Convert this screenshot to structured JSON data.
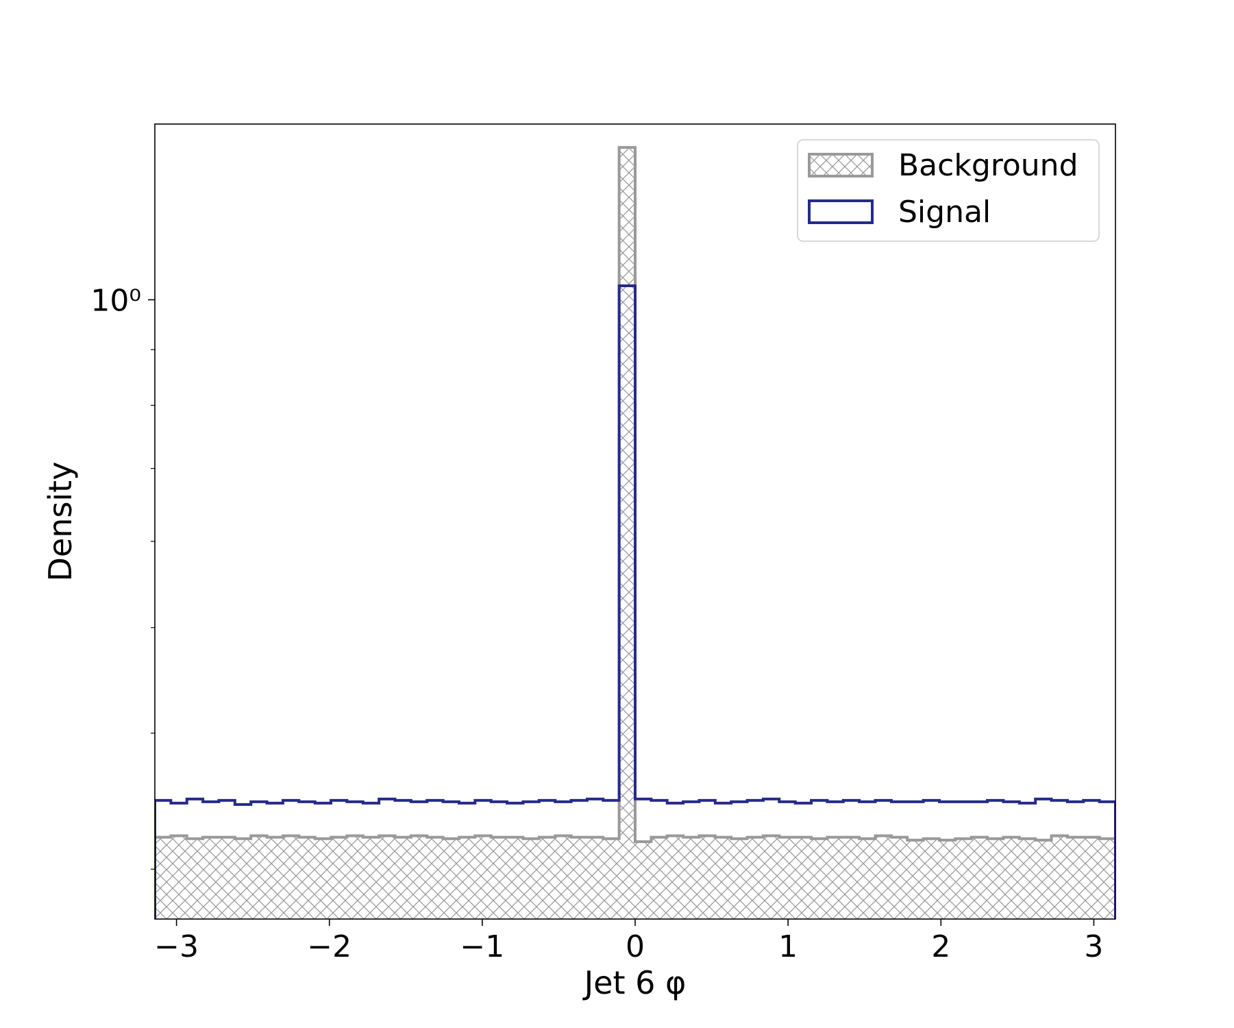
{
  "chart_data": {
    "type": "histogram",
    "xlabel": "Jet 6 φ",
    "ylabel": "Density",
    "xlim": [
      -3.1416,
      3.1416
    ],
    "ylim": [
      0.27,
      1.45
    ],
    "yscale": "log",
    "xticks": [
      -3,
      -2,
      -1,
      0,
      1,
      2,
      3
    ],
    "xtick_labels": [
      "−3",
      "−2",
      "−1",
      "0",
      "1",
      "2",
      "3"
    ],
    "yticks_major": [
      1.0
    ],
    "ytick_labels": [
      "10⁰"
    ],
    "yticks_minor": [
      0.3,
      0.4,
      0.5,
      0.6,
      0.7,
      0.8,
      0.9
    ],
    "bins": {
      "start": -3.1416,
      "end": 3.1416,
      "count": 60
    },
    "legend": {
      "position": "upper right",
      "entries": [
        "Background",
        "Signal"
      ]
    },
    "series": [
      {
        "name": "Background",
        "style": "hatched-step",
        "color": "#999999",
        "values": [
          0.321,
          0.322,
          0.32,
          0.321,
          0.321,
          0.32,
          0.322,
          0.321,
          0.322,
          0.321,
          0.32,
          0.321,
          0.322,
          0.321,
          0.322,
          0.321,
          0.322,
          0.321,
          0.32,
          0.321,
          0.322,
          0.321,
          0.321,
          0.32,
          0.321,
          0.322,
          0.321,
          0.321,
          0.32,
          1.38,
          0.318,
          0.321,
          0.322,
          0.321,
          0.322,
          0.321,
          0.32,
          0.321,
          0.322,
          0.321,
          0.321,
          0.32,
          0.321,
          0.321,
          0.32,
          0.322,
          0.321,
          0.319,
          0.32,
          0.319,
          0.32,
          0.321,
          0.32,
          0.321,
          0.32,
          0.319,
          0.322,
          0.321,
          0.321,
          0.32
        ]
      },
      {
        "name": "Signal",
        "style": "step",
        "color": "#262a8c",
        "values": [
          0.347,
          0.345,
          0.348,
          0.346,
          0.347,
          0.344,
          0.346,
          0.345,
          0.347,
          0.346,
          0.345,
          0.347,
          0.346,
          0.345,
          0.348,
          0.347,
          0.346,
          0.347,
          0.346,
          0.345,
          0.347,
          0.346,
          0.345,
          0.346,
          0.347,
          0.346,
          0.347,
          0.348,
          0.347,
          1.03,
          0.348,
          0.347,
          0.345,
          0.346,
          0.347,
          0.345,
          0.346,
          0.347,
          0.348,
          0.346,
          0.345,
          0.347,
          0.346,
          0.347,
          0.346,
          0.347,
          0.346,
          0.346,
          0.347,
          0.346,
          0.346,
          0.346,
          0.347,
          0.346,
          0.345,
          0.348,
          0.347,
          0.346,
          0.347,
          0.346
        ]
      }
    ]
  }
}
